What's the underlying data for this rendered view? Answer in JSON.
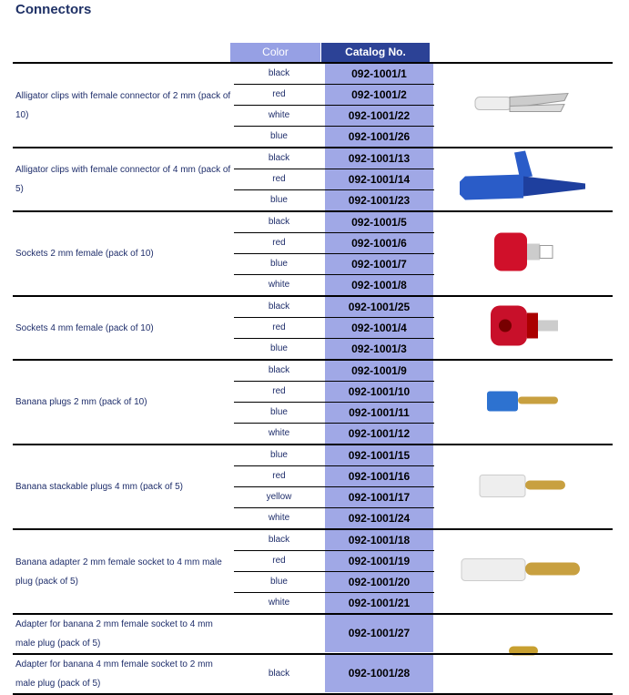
{
  "title": "Connectors",
  "header": {
    "color": "Color",
    "catalog": "Catalog No."
  },
  "groups": [
    {
      "description": "Alligator clips with female connector of 2 mm (pack of 10)",
      "image": "white-alligator-clip",
      "rows": [
        {
          "color": "black",
          "catalog": "092-1001/1"
        },
        {
          "color": "red",
          "catalog": "092-1001/2"
        },
        {
          "color": "white",
          "catalog": "092-1001/22"
        },
        {
          "color": "blue",
          "catalog": "092-1001/26"
        }
      ]
    },
    {
      "description": "Alligator clips with female connector of 4 mm (pack of 5)",
      "image": "blue-alligator-clip",
      "rows": [
        {
          "color": "black",
          "catalog": "092-1001/13"
        },
        {
          "color": "red",
          "catalog": "092-1001/14"
        },
        {
          "color": "blue",
          "catalog": "092-1001/23"
        }
      ]
    },
    {
      "description": "Sockets 2 mm female (pack of 10)",
      "image": "red-socket-2mm",
      "rows": [
        {
          "color": "black",
          "catalog": "092-1001/5"
        },
        {
          "color": "red",
          "catalog": "092-1001/6"
        },
        {
          "color": "blue",
          "catalog": "092-1001/7"
        },
        {
          "color": "white",
          "catalog": "092-1001/8"
        }
      ]
    },
    {
      "description": "Sockets 4 mm female (pack of 10)",
      "image": "red-socket-4mm",
      "rows": [
        {
          "color": "black",
          "catalog": "092-1001/25"
        },
        {
          "color": "red",
          "catalog": "092-1001/4"
        },
        {
          "color": "blue",
          "catalog": "092-1001/3"
        }
      ]
    },
    {
      "description": "Banana plugs 2 mm (pack of 10)",
      "image": "blue-banana-plug",
      "rows": [
        {
          "color": "black",
          "catalog": "092-1001/9"
        },
        {
          "color": "red",
          "catalog": "092-1001/10"
        },
        {
          "color": "blue",
          "catalog": "092-1001/11"
        },
        {
          "color": "white",
          "catalog": "092-1001/12"
        }
      ]
    },
    {
      "description": "Banana stackable plugs 4 mm (pack of 5)",
      "image": "white-stackable-plug",
      "rows": [
        {
          "color": "blue",
          "catalog": "092-1001/15"
        },
        {
          "color": "red",
          "catalog": "092-1001/16"
        },
        {
          "color": "yellow",
          "catalog": "092-1001/17"
        },
        {
          "color": "white",
          "catalog": "092-1001/24"
        }
      ]
    },
    {
      "description": "Banana adapter 2 mm female socket to 4 mm male plug (pack of 5)",
      "image": "white-banana-adapter",
      "rows": [
        {
          "color": "black",
          "catalog": "092-1001/18"
        },
        {
          "color": "red",
          "catalog": "092-1001/19"
        },
        {
          "color": "blue",
          "catalog": "092-1001/20"
        },
        {
          "color": "white",
          "catalog": "092-1001/21"
        }
      ]
    },
    {
      "description": "Adapter for banana 2 mm female socket to 4 mm male plug (pack of 5)",
      "image": "gold-adapter",
      "rows": [
        {
          "color": "",
          "catalog": "092-1001/27"
        }
      ]
    },
    {
      "description": "Adapter for banana 4 mm female socket to 2 mm male plug (pack of 5)",
      "image": "",
      "rows": [
        {
          "color": "black",
          "catalog": "092-1001/28"
        }
      ]
    }
  ]
}
